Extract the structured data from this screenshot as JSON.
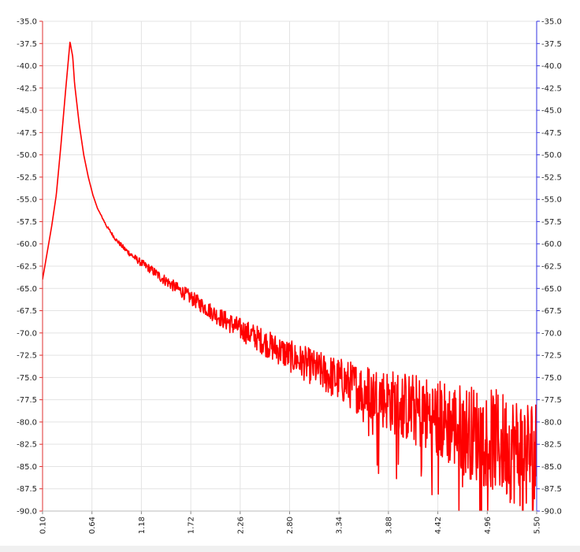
{
  "chart_data": {
    "type": "line",
    "title": "",
    "xlabel": "",
    "ylabel": "",
    "xlim": [
      0.1,
      5.5
    ],
    "ylim": [
      -90.0,
      -35.0
    ],
    "x_ticks": [
      "0.10",
      "0.64",
      "1.18",
      "1.72",
      "2.26",
      "2.80",
      "3.34",
      "3.88",
      "4.42",
      "4.96",
      "5.50"
    ],
    "y_ticks_left": [
      "-35.0",
      "-37.5",
      "-40.0",
      "-42.5",
      "-45.0",
      "-47.5",
      "-50.0",
      "-52.5",
      "-55.0",
      "-57.5",
      "-60.0",
      "-62.5",
      "-65.0",
      "-67.5",
      "-70.0",
      "-72.5",
      "-75.0",
      "-77.5",
      "-80.0",
      "-82.5",
      "-85.0",
      "-87.5",
      "-90.0"
    ],
    "y_ticks_right": [
      "-35.0",
      "-37.5",
      "-40.0",
      "-42.5",
      "-45.0",
      "-47.5",
      "-50.0",
      "-52.5",
      "-55.0",
      "-57.5",
      "-60.0",
      "-62.5",
      "-65.0",
      "-67.5",
      "-70.0",
      "-72.5",
      "-75.0",
      "-77.5",
      "-80.0",
      "-82.5",
      "-85.0",
      "-87.5",
      "-90.0"
    ],
    "grid": true,
    "left_axis_color": "#e03030",
    "right_axis_color": "#3030e0",
    "series": [
      {
        "color": "#ff0000",
        "x": [
          0.1,
          0.15,
          0.2,
          0.25,
          0.3,
          0.35,
          0.4,
          0.43,
          0.45,
          0.5,
          0.55,
          0.6,
          0.65,
          0.7,
          0.8,
          0.9,
          1.0,
          1.1,
          1.2,
          1.3,
          1.4,
          1.5,
          1.6,
          1.7,
          1.8,
          1.9,
          2.0,
          2.1,
          2.2,
          2.3,
          2.4,
          2.5,
          2.6,
          2.7,
          2.8,
          2.9,
          3.0,
          3.1,
          3.2,
          3.3,
          3.4,
          3.5,
          3.6,
          3.7,
          3.8,
          3.9,
          4.0,
          4.1,
          4.2,
          4.3,
          4.4,
          4.5,
          4.6,
          4.7,
          4.8,
          4.9,
          5.0,
          5.1,
          5.2,
          5.3,
          5.4,
          5.5
        ],
        "y": [
          -64.0,
          -61.0,
          -58.0,
          -54.5,
          -49.0,
          -43.0,
          -37.3,
          -39.0,
          -42.0,
          -46.5,
          -50.0,
          -52.5,
          -54.5,
          -56.0,
          -58.0,
          -59.5,
          -60.6,
          -61.5,
          -62.3,
          -63.0,
          -63.8,
          -64.5,
          -65.2,
          -65.9,
          -66.6,
          -67.3,
          -68.0,
          -68.6,
          -69.2,
          -69.8,
          -70.3,
          -70.9,
          -71.5,
          -72.0,
          -72.6,
          -73.1,
          -73.6,
          -74.1,
          -74.6,
          -75.1,
          -75.5,
          -76.0,
          -76.4,
          -76.8,
          -77.2,
          -77.6,
          -78.0,
          -78.4,
          -78.8,
          -79.2,
          -79.6,
          -80.0,
          -80.4,
          -80.8,
          -81.2,
          -81.6,
          -82.0,
          -82.4,
          -82.8,
          -83.2,
          -83.5,
          -83.8
        ],
        "noise_amplitude": [
          0,
          0,
          0,
          0,
          0,
          0,
          0,
          0,
          0,
          0,
          0,
          0,
          0,
          0,
          0.15,
          0.2,
          0.3,
          0.35,
          0.45,
          0.5,
          0.6,
          0.65,
          0.7,
          0.8,
          0.85,
          0.9,
          1.0,
          1.1,
          1.2,
          1.3,
          1.4,
          1.5,
          1.6,
          1.7,
          1.8,
          1.9,
          2.0,
          2.1,
          2.3,
          2.5,
          2.6,
          2.8,
          3.0,
          3.2,
          3.4,
          3.6,
          3.8,
          4.0,
          4.2,
          4.4,
          4.6,
          4.8,
          5.0,
          5.2,
          5.4,
          5.6,
          5.8,
          6.0,
          6.2,
          6.4,
          6.6,
          6.8
        ]
      }
    ]
  }
}
